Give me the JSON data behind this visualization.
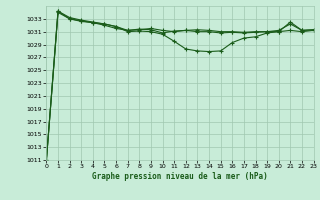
{
  "background_color": "#c8ecd8",
  "grid_color": "#a0c8b0",
  "line_color": "#1a5c1a",
  "marker_color": "#1a5c1a",
  "title": "Graphe pression niveau de la mer (hPa)",
  "ylim": [
    1011,
    1035
  ],
  "yticks": [
    1011,
    1013,
    1015,
    1017,
    1019,
    1021,
    1023,
    1025,
    1027,
    1029,
    1031,
    1033
  ],
  "xlim": [
    0,
    23
  ],
  "xticks": [
    0,
    1,
    2,
    3,
    4,
    5,
    6,
    7,
    8,
    9,
    10,
    11,
    12,
    13,
    14,
    15,
    16,
    17,
    18,
    19,
    20,
    21,
    22,
    23
  ],
  "series": [
    [
      1011.0,
      1034.2,
      1033.2,
      1032.8,
      1032.5,
      1032.2,
      1031.8,
      1031.2,
      1031.4,
      1031.3,
      1030.8,
      1031.1,
      1031.2,
      1031.3,
      1031.2,
      1031.0,
      1031.0,
      1030.9,
      1031.0,
      1031.0,
      1031.2,
      1032.2,
      1031.2,
      1031.3
    ],
    [
      1011.0,
      1034.0,
      1033.0,
      1032.6,
      1032.4,
      1032.0,
      1031.5,
      1031.2,
      1031.3,
      1031.5,
      1031.2,
      1031.0,
      1031.2,
      1031.0,
      1031.0,
      1030.8,
      1030.9,
      1030.8,
      1030.9,
      1031.0,
      1031.0,
      1031.2,
      1031.0,
      1031.2
    ],
    [
      1011.0,
      1034.2,
      1033.0,
      1032.7,
      1032.4,
      1032.2,
      1031.8,
      1031.0,
      1031.1,
      1031.0,
      1030.6,
      1029.5,
      1028.3,
      1028.0,
      1027.9,
      1028.0,
      1029.3,
      1030.0,
      1030.2,
      1030.8,
      1031.0,
      1032.5,
      1031.2,
      1031.3
    ]
  ]
}
